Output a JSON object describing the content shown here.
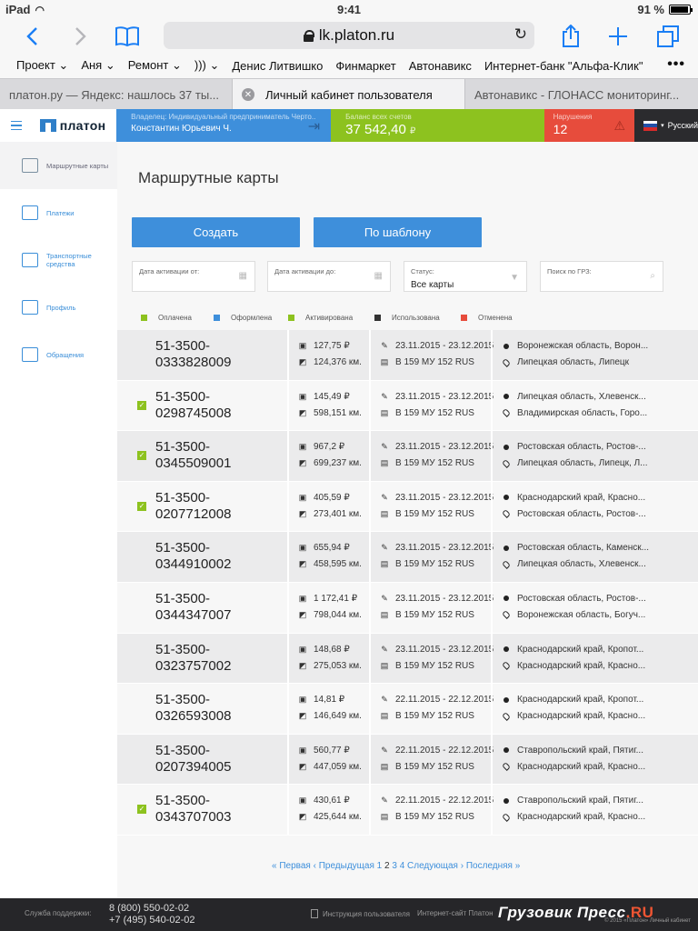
{
  "status_bar": {
    "device": "iPad",
    "time": "9:41",
    "battery": "91 %"
  },
  "browser": {
    "url": "lk.platon.ru",
    "bookmarks": [
      "Проект ⌄",
      "Аня ⌄",
      "Ремонт ⌄",
      "))) ⌄",
      "Денис Литвишко",
      "Финмаркет",
      "Автонавикс",
      "Интернет-банк \"Альфа-Клик\""
    ],
    "tabs": [
      {
        "label": "платон.ру — Яндекс: нашлось 37 ты..."
      },
      {
        "label": "Личный кабинет пользователя"
      },
      {
        "label": "Автонавикс - ГЛОНАСС мониторинг..."
      }
    ]
  },
  "header": {
    "logo": "платон",
    "owner_label": "Владелец: Индивидуальный предприниматель Черто...",
    "owner_name": "Константин Юрьевич Ч.",
    "balance_label": "Баланс всех счетов",
    "balance_value": "37 542,40",
    "currency": "₽",
    "violations_label": "Нарушения",
    "violations_value": "12",
    "language": "Русский"
  },
  "sidebar": {
    "items": [
      {
        "label": "Маршрутные карты"
      },
      {
        "label": "Платежи"
      },
      {
        "label": "Транспортные средства"
      },
      {
        "label": "Профиль"
      },
      {
        "label": "Обращения"
      }
    ]
  },
  "main": {
    "title": "Маршрутные карты",
    "create_button": "Создать",
    "template_button": "По шаблону",
    "filters": {
      "date_from_label": "Дата активации от:",
      "date_to_label": "Дата активации до:",
      "status_label": "Статус:",
      "status_value": "Все карты",
      "search_label": "Поиск по ГРЗ:"
    },
    "legend": [
      {
        "label": "Оплачена",
        "color": "#8dc21f"
      },
      {
        "label": "Оформлена",
        "color": "#3e8fdb"
      },
      {
        "label": "Активирована",
        "color": "#8dc21f"
      },
      {
        "label": "Использована",
        "color": "#333333"
      },
      {
        "label": "Отменена",
        "color": "#e74c3c"
      }
    ],
    "rows": [
      {
        "num1": "51-3500-",
        "num2": "0333828009",
        "checked": false,
        "sum": "127,75 ₽",
        "dist": "124,376 км.",
        "dates": "23.11.2015 - 23.12.2015",
        "plate": "В 159 МУ 152 RUS",
        "from": "Воронежская область, Ворон...",
        "to": "Липецкая область, Липецк"
      },
      {
        "num1": "51-3500-",
        "num2": "0298745008",
        "checked": true,
        "sum": "145,49 ₽",
        "dist": "598,151 км.",
        "dates": "23.11.2015 - 23.12.2015",
        "plate": "В 159 МУ 152 RUS",
        "from": "Липецкая область, Хлевенск...",
        "to": "Владимирская область, Горо..."
      },
      {
        "num1": "51-3500-",
        "num2": "0345509001",
        "checked": true,
        "sum": "967,2 ₽",
        "dist": "699,237 км.",
        "dates": "23.11.2015 - 23.12.2015",
        "plate": "В 159 МУ 152 RUS",
        "from": "Ростовская область, Ростов-...",
        "to": "Липецкая область, Липецк, Л..."
      },
      {
        "num1": "51-3500-",
        "num2": "0207712008",
        "checked": true,
        "sum": "405,59 ₽",
        "dist": "273,401 км.",
        "dates": "23.11.2015 - 23.12.2015",
        "plate": "В 159 МУ 152 RUS",
        "from": "Краснодарский край, Красно...",
        "to": "Ростовская область, Ростов-..."
      },
      {
        "num1": "51-3500-",
        "num2": "0344910002",
        "checked": false,
        "sum": "655,94 ₽",
        "dist": "458,595 км.",
        "dates": "23.11.2015 - 23.12.2015",
        "plate": "В 159 МУ 152 RUS",
        "from": "Ростовская область, Каменск...",
        "to": "Липецкая область, Хлевенск..."
      },
      {
        "num1": "51-3500-",
        "num2": "0344347007",
        "checked": false,
        "sum": "1 172,41 ₽",
        "dist": "798,044 км.",
        "dates": "23.11.2015 - 23.12.2015",
        "plate": "В 159 МУ 152 RUS",
        "from": "Ростовская область, Ростов-...",
        "to": "Воронежская область, Богуч..."
      },
      {
        "num1": "51-3500-",
        "num2": "0323757002",
        "checked": false,
        "sum": "148,68 ₽",
        "dist": "275,053 км.",
        "dates": "23.11.2015 - 23.12.2015",
        "plate": "В 159 МУ 152 RUS",
        "from": "Краснодарский край, Кропот...",
        "to": "Краснодарский край, Красно..."
      },
      {
        "num1": "51-3500-",
        "num2": "0326593008",
        "checked": false,
        "sum": "14,81 ₽",
        "dist": "146,649 км.",
        "dates": "22.11.2015 - 22.12.2015",
        "plate": "В 159 МУ 152 RUS",
        "from": "Краснодарский край, Кропот...",
        "to": "Краснодарский край, Красно..."
      },
      {
        "num1": "51-3500-",
        "num2": "0207394005",
        "checked": false,
        "sum": "560,77 ₽",
        "dist": "447,059 км.",
        "dates": "22.11.2015 - 22.12.2015",
        "plate": "В 159 МУ 152 RUS",
        "from": "Ставропольский край, Пятиг...",
        "to": "Краснодарский край, Красно..."
      },
      {
        "num1": "51-3500-",
        "num2": "0343707003",
        "checked": true,
        "sum": "430,61 ₽",
        "dist": "425,644 км.",
        "dates": "22.11.2015 - 22.12.2015",
        "plate": "В 159 МУ 152 RUS",
        "from": "Ставропольский край, Пятиг...",
        "to": "Краснодарский край, Красно..."
      }
    ],
    "pagination": {
      "first": "« Первая",
      "prev": "‹ Предыдущая",
      "pages": [
        "1",
        "2",
        "3",
        "4"
      ],
      "current": "2",
      "next": "Следующая ›",
      "last": "Последняя »"
    }
  },
  "footer": {
    "support_label": "Служба поддержки:",
    "phone1": "8 (800) 550-02-02",
    "phone2": "+7 (495) 540-02-02",
    "manual": "Инструкция пользователя",
    "site": "Интернет-сайт Платон",
    "watermark_main": "Грузовик Пресс",
    "watermark_ru": ".RU",
    "copyright": "© 2015 «Платон» Личный кабинет"
  }
}
